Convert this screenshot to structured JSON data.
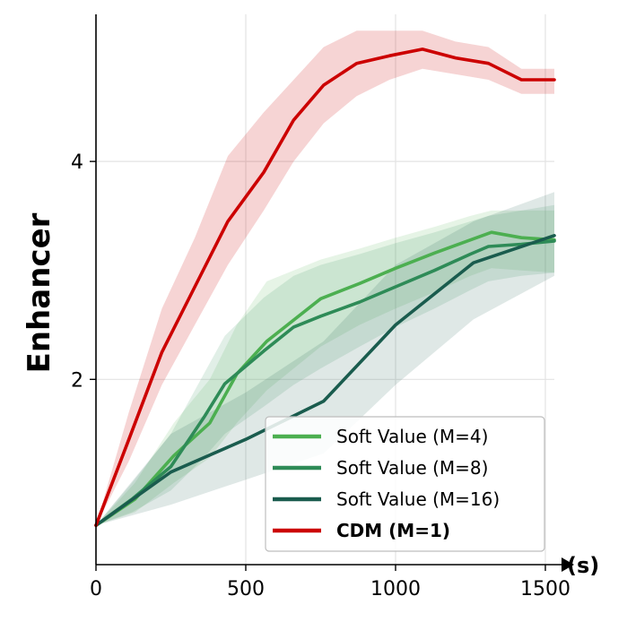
{
  "chart_data": {
    "type": "line",
    "ylabel": "Enhancer",
    "xlabel": "(s)",
    "xlim": [
      0,
      1530
    ],
    "ylim": [
      0.3,
      5.35
    ],
    "x_ticks": [
      0,
      500,
      1000,
      1500
    ],
    "y_ticks": [
      2,
      4
    ],
    "x_tick_labels": [
      "0",
      "500",
      "1000",
      "1500"
    ],
    "y_tick_labels": [
      "2",
      "4"
    ],
    "grid": true,
    "legend_position": "lower-right",
    "series": [
      {
        "name": "Soft Value (M=4)",
        "color": "#4caf50",
        "x": [
          0,
          130,
          260,
          380,
          470,
          570,
          750,
          880,
          1000,
          1130,
          1250,
          1320,
          1420,
          1530
        ],
        "y": [
          0.66,
          0.9,
          1.3,
          1.6,
          2.05,
          2.35,
          2.74,
          2.88,
          3.02,
          3.16,
          3.28,
          3.35,
          3.3,
          3.28
        ],
        "lower": [
          0.66,
          0.78,
          1.05,
          1.28,
          1.6,
          1.9,
          2.3,
          2.5,
          2.65,
          2.8,
          2.95,
          3.02,
          3.0,
          2.98
        ],
        "upper": [
          0.66,
          1.05,
          1.6,
          2.0,
          2.5,
          2.9,
          3.1,
          3.2,
          3.3,
          3.4,
          3.5,
          3.55,
          3.55,
          3.55
        ]
      },
      {
        "name": "Soft Value (M=8)",
        "color": "#2e8b57",
        "x": [
          0,
          120,
          250,
          360,
          430,
          560,
          660,
          750,
          880,
          1000,
          1130,
          1250,
          1310,
          1420,
          1530
        ],
        "y": [
          0.66,
          0.9,
          1.2,
          1.65,
          1.96,
          2.26,
          2.48,
          2.58,
          2.71,
          2.85,
          3.0,
          3.15,
          3.22,
          3.24,
          3.27
        ],
        "lower": [
          0.66,
          0.78,
          0.98,
          1.28,
          1.5,
          1.75,
          1.95,
          2.1,
          2.3,
          2.48,
          2.65,
          2.82,
          2.9,
          2.95,
          2.98
        ],
        "upper": [
          0.66,
          1.05,
          1.5,
          2.05,
          2.4,
          2.75,
          2.95,
          3.05,
          3.15,
          3.25,
          3.35,
          3.45,
          3.5,
          3.55,
          3.6
        ]
      },
      {
        "name": "Soft Value (M=16)",
        "color": "#1a5c4e",
        "x": [
          0,
          250,
          500,
          760,
          1000,
          1260,
          1530
        ],
        "y": [
          0.66,
          1.15,
          1.45,
          1.8,
          2.5,
          3.07,
          3.32
        ],
        "lower": [
          0.66,
          0.85,
          1.08,
          1.32,
          1.95,
          2.55,
          2.95
        ],
        "upper": [
          0.66,
          1.5,
          1.88,
          2.35,
          3.05,
          3.45,
          3.72
        ]
      },
      {
        "name": "CDM (M=1)",
        "color": "#cc0000",
        "x": [
          0,
          110,
          220,
          330,
          440,
          560,
          660,
          760,
          870,
          980,
          1090,
          1200,
          1310,
          1420,
          1530
        ],
        "y": [
          0.66,
          1.45,
          2.25,
          2.85,
          3.45,
          3.9,
          4.38,
          4.7,
          4.9,
          4.97,
          5.03,
          4.95,
          4.9,
          4.75,
          4.75
        ],
        "lower": [
          0.66,
          1.25,
          1.95,
          2.5,
          3.05,
          3.55,
          4.0,
          4.35,
          4.6,
          4.75,
          4.85,
          4.8,
          4.75,
          4.62,
          4.62
        ],
        "upper": [
          0.66,
          1.7,
          2.65,
          3.3,
          4.05,
          4.45,
          4.75,
          5.05,
          5.2,
          5.2,
          5.2,
          5.1,
          5.05,
          4.85,
          4.85
        ]
      }
    ]
  }
}
